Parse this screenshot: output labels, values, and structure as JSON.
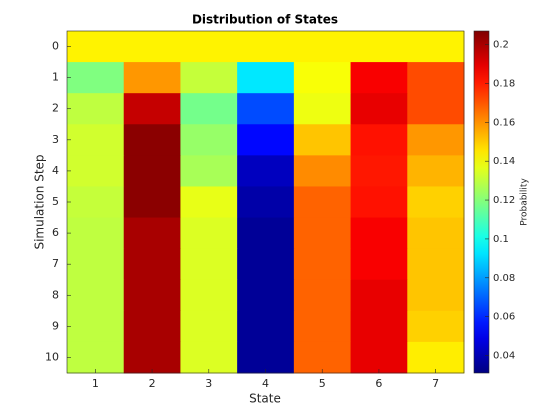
{
  "chart_data": {
    "type": "heatmap",
    "title": "Distribution of States",
    "xlabel": "State",
    "ylabel": "Simulation Step",
    "colorbar_label": "Probability",
    "colormap": "jet",
    "categories": [
      1,
      2,
      3,
      4,
      5,
      6,
      7
    ],
    "rows": [
      0,
      1,
      2,
      3,
      4,
      5,
      6,
      7,
      8,
      9,
      10
    ],
    "z": [
      [
        0.143,
        0.143,
        0.143,
        0.143,
        0.143,
        0.143,
        0.143
      ],
      [
        0.119,
        0.159,
        0.131,
        0.093,
        0.14,
        0.186,
        0.172
      ],
      [
        0.13,
        0.195,
        0.117,
        0.066,
        0.138,
        0.189,
        0.172
      ],
      [
        0.133,
        0.205,
        0.123,
        0.054,
        0.151,
        0.182,
        0.159
      ],
      [
        0.133,
        0.205,
        0.126,
        0.042,
        0.161,
        0.181,
        0.154
      ],
      [
        0.131,
        0.205,
        0.137,
        0.038,
        0.168,
        0.182,
        0.149
      ],
      [
        0.13,
        0.2,
        0.135,
        0.035,
        0.168,
        0.186,
        0.151
      ],
      [
        0.13,
        0.2,
        0.135,
        0.035,
        0.168,
        0.186,
        0.151
      ],
      [
        0.13,
        0.2,
        0.135,
        0.035,
        0.168,
        0.189,
        0.151
      ],
      [
        0.13,
        0.2,
        0.135,
        0.035,
        0.168,
        0.189,
        0.149
      ],
      [
        0.13,
        0.2,
        0.135,
        0.035,
        0.168,
        0.189,
        0.144
      ]
    ],
    "clim": [
      0.031,
      0.207
    ],
    "cticks": [
      0.04,
      0.06,
      0.08,
      0.1,
      0.12,
      0.14,
      0.16,
      0.18,
      0.2
    ]
  }
}
